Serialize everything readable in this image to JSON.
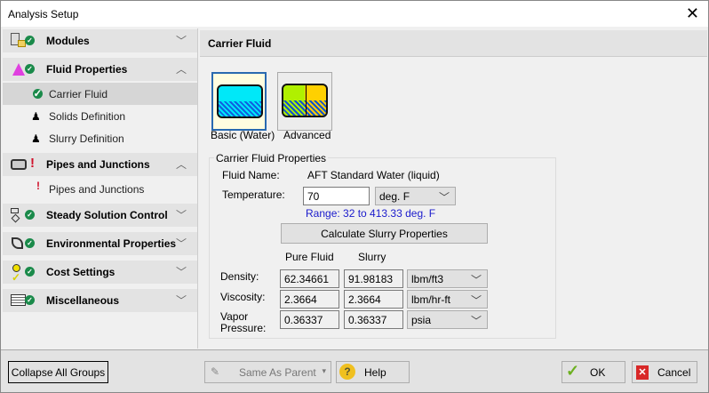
{
  "window": {
    "title": "Analysis Setup",
    "close": "✕"
  },
  "sidebar": {
    "groups": [
      {
        "label": "Modules",
        "status": "ok",
        "expanded": false
      },
      {
        "label": "Fluid Properties",
        "status": "ok",
        "expanded": true
      },
      {
        "label": "Pipes and Junctions",
        "status": "error",
        "expanded": true
      },
      {
        "label": "Steady Solution Control",
        "status": "ok",
        "expanded": false
      },
      {
        "label": "Environmental Properties",
        "status": "ok",
        "expanded": false
      },
      {
        "label": "Cost Settings",
        "status": "ok",
        "expanded": false
      },
      {
        "label": "Miscellaneous",
        "status": "ok",
        "expanded": false
      }
    ],
    "items": [
      {
        "label": "Carrier Fluid",
        "status": "ok",
        "selected": true
      },
      {
        "label": "Solids Definition",
        "status": "user-edit"
      },
      {
        "label": "Slurry Definition",
        "status": "user-edit"
      },
      {
        "label": "Pipes and Junctions",
        "status": "error"
      }
    ],
    "chev_down": "﹀",
    "chev_up": "︿",
    "bang": "!",
    "check": "✓"
  },
  "main": {
    "header": "Carrier Fluid",
    "modes": [
      {
        "label": "Basic (Water)",
        "selected": true
      },
      {
        "label": "Advanced",
        "selected": false
      }
    ],
    "group_label": "Carrier Fluid Properties",
    "fluid_name_label": "Fluid Name:",
    "fluid_name": "AFT Standard Water (liquid)",
    "temperature_label": "Temperature:",
    "temperature": "70",
    "temperature_unit": "deg. F",
    "range": "Range: 32 to 413.33 deg. F",
    "calc_button": "Calculate Slurry Properties",
    "col_pure": "Pure Fluid",
    "col_slurry": "Slurry",
    "rows": [
      {
        "label": "Density:",
        "pure": "62.34661",
        "slurry": "91.98183",
        "unit": "lbm/ft3"
      },
      {
        "label": "Viscosity:",
        "pure": "2.3664",
        "slurry": "2.3664",
        "unit": "lbm/hr-ft"
      },
      {
        "label1": "Vapor",
        "label2": "Pressure:",
        "pure": "0.36337",
        "slurry": "0.36337",
        "unit": "psia"
      }
    ]
  },
  "footer": {
    "collapse": "Collapse All Groups",
    "same_as_parent": "Same As Parent",
    "help": "Help",
    "ok": "OK",
    "cancel": "Cancel"
  },
  "colors": {
    "accent": "#2a6ab0",
    "ok": "#1a8a4a",
    "error": "#d0102a",
    "range_text": "#1a1acc"
  }
}
